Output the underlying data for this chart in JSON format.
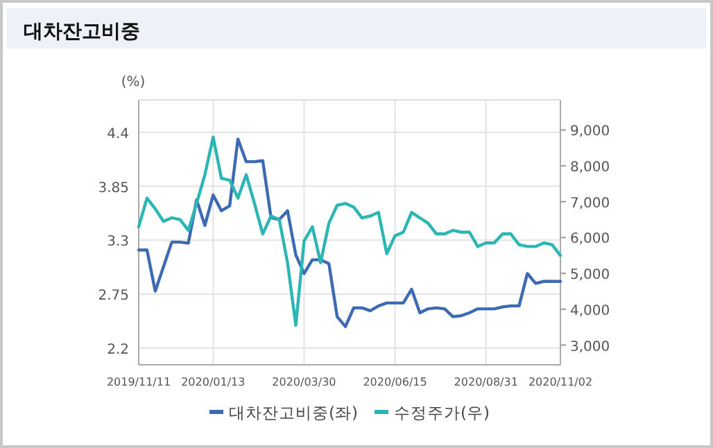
{
  "chart_data": {
    "type": "line",
    "title": "대차잔고비중",
    "ylabel": "(%)",
    "x": [
      "2019-11-11",
      "2019-11-18",
      "2019-11-25",
      "2019-12-02",
      "2019-12-09",
      "2019-12-16",
      "2019-12-23",
      "2019-12-30",
      "2020-01-06",
      "2020-01-13",
      "2020-01-20",
      "2020-01-27",
      "2020-02-03",
      "2020-02-10",
      "2020-02-17",
      "2020-02-24",
      "2020-03-02",
      "2020-03-09",
      "2020-03-16",
      "2020-03-23",
      "2020-03-30",
      "2020-04-06",
      "2020-04-13",
      "2020-04-20",
      "2020-04-27",
      "2020-05-04",
      "2020-05-11",
      "2020-05-18",
      "2020-05-25",
      "2020-06-01",
      "2020-06-08",
      "2020-06-15",
      "2020-06-22",
      "2020-06-29",
      "2020-07-06",
      "2020-07-13",
      "2020-07-20",
      "2020-07-27",
      "2020-08-03",
      "2020-08-10",
      "2020-08-17",
      "2020-08-24",
      "2020-08-31",
      "2020-09-07",
      "2020-09-14",
      "2020-09-21",
      "2020-09-28",
      "2020-10-05",
      "2020-10-12",
      "2020-10-19",
      "2020-10-26",
      "2020-11-02"
    ],
    "series": [
      {
        "name": "대차잔고비중(좌)",
        "color": "#3d6bb3",
        "axis": "y",
        "values": [
          3.2,
          3.2,
          2.78,
          3.03,
          3.28,
          3.28,
          3.27,
          3.71,
          3.45,
          3.76,
          3.6,
          3.65,
          4.33,
          4.1,
          4.1,
          4.11,
          3.53,
          3.51,
          3.6,
          3.15,
          2.96,
          3.1,
          3.1,
          3.06,
          2.52,
          2.42,
          2.61,
          2.61,
          2.58,
          2.63,
          2.66,
          2.66,
          2.66,
          2.8,
          2.56,
          2.6,
          2.61,
          2.6,
          2.52,
          2.53,
          2.56,
          2.6,
          2.6,
          2.6,
          2.62,
          2.63,
          2.63,
          2.96,
          2.86,
          2.88,
          2.88,
          2.88
        ]
      },
      {
        "name": "수정주가(우)",
        "color": "#2bb5b5",
        "axis": "y2",
        "values": [
          6300,
          7100,
          6800,
          6450,
          6550,
          6500,
          6200,
          6950,
          7750,
          8800,
          7650,
          7600,
          7100,
          7750,
          6950,
          6100,
          6600,
          6500,
          5300,
          3550,
          5900,
          6300,
          5300,
          6400,
          6900,
          6950,
          6850,
          6550,
          6600,
          6700,
          5550,
          6050,
          6150,
          6700,
          6550,
          6400,
          6100,
          6100,
          6200,
          6150,
          6150,
          5750,
          5850,
          5850,
          6100,
          6100,
          5800,
          5750,
          5750,
          5850,
          5800,
          5500
        ]
      }
    ],
    "xlim": [
      "2019-11-11",
      "2020-11-02"
    ],
    "xticks": [
      {
        "value": "2019-11-11",
        "label": "2019/11/11"
      },
      {
        "value": "2020-01-13",
        "label": "2020/01/13"
      },
      {
        "value": "2020-03-30",
        "label": "2020/03/30"
      },
      {
        "value": "2020-06-15",
        "label": "2020/06/15"
      },
      {
        "value": "2020-08-31",
        "label": "2020/08/31"
      },
      {
        "value": "2020-11-02",
        "label": "2020/11/02"
      }
    ],
    "ylim": [
      2.03,
      4.73
    ],
    "yticks": [
      2.2,
      2.75,
      3.3,
      3.85,
      4.4
    ],
    "y2lim": [
      2450,
      9840
    ],
    "y2ticks": [
      {
        "value": 3000,
        "label": "3,000"
      },
      {
        "value": 4000,
        "label": "4,000"
      },
      {
        "value": 5000,
        "label": "5,000"
      },
      {
        "value": 6000,
        "label": "6,000"
      },
      {
        "value": 7000,
        "label": "7,000"
      },
      {
        "value": 8000,
        "label": "8,000"
      },
      {
        "value": 9000,
        "label": "9,000"
      }
    ],
    "grid": true,
    "legend": "bottom",
    "marker": "none",
    "line_style": "solid"
  }
}
